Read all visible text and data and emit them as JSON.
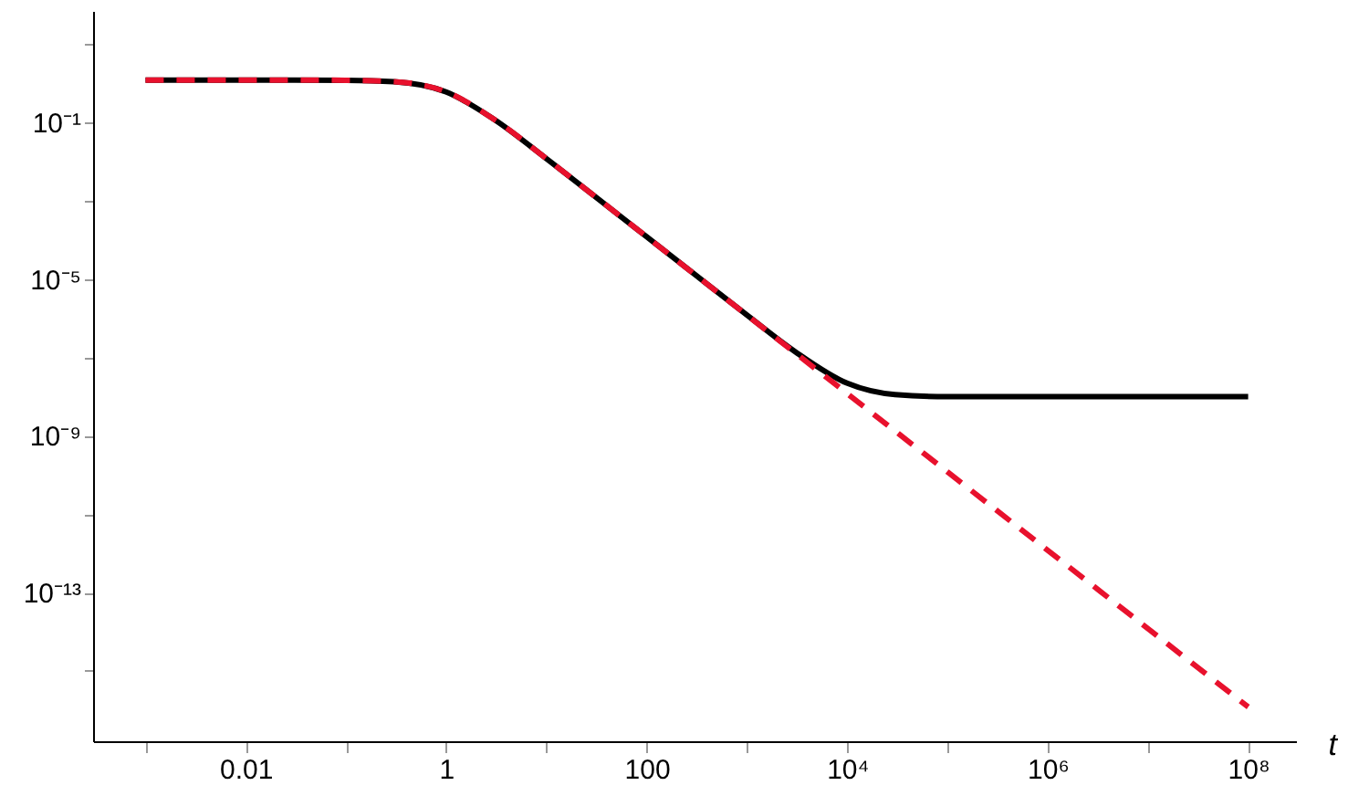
{
  "chart_data": {
    "type": "line",
    "xlabel": "t",
    "log": "xy",
    "grid": false,
    "marker": "none",
    "x": [
      0.001,
      0.003,
      0.01,
      0.03,
      0.1,
      0.3,
      1,
      3,
      10,
      30,
      100,
      300,
      1000,
      3000,
      10000,
      30000,
      100000,
      1000000,
      10000000,
      100000000
    ],
    "series": [
      {
        "color": "#000000",
        "line_style": "solid",
        "values": [
          1.2,
          1.2,
          1.2,
          1.2,
          1.19,
          1.1,
          0.6,
          0.12,
          0.0119,
          0.00133,
          0.00012,
          1.33e-05,
          1.21e-06,
          1.43e-07,
          2.2e-08,
          1.13e-08,
          1e-08,
          1e-08,
          1e-08,
          1e-08
        ]
      },
      {
        "color": "#e8112d",
        "line_style": "dashed",
        "values": [
          1.2,
          1.2,
          1.2,
          1.2,
          1.19,
          1.1,
          0.6,
          0.12,
          0.0119,
          0.00133,
          0.00012,
          1.33e-05,
          1.2e-06,
          1.33e-07,
          1.2e-08,
          1.33e-09,
          1.2e-10,
          1.2e-12,
          1.2e-14,
          1.2e-16
        ]
      }
    ],
    "xlim": [
      0.0003,
      300000000
    ],
    "ylim": [
      1.6e-17,
      70
    ],
    "xticks": [
      {
        "value": 0.001,
        "label": null
      },
      0.01,
      {
        "value": 0.1,
        "label": null
      },
      1,
      {
        "value": 10,
        "label": null
      },
      100,
      {
        "value": 1000,
        "label": null
      },
      {
        "value": 10000,
        "label": "10⁴"
      },
      {
        "value": 100000,
        "label": null
      },
      {
        "value": 1000000,
        "label": "10⁶"
      },
      {
        "value": 10000000,
        "label": null
      },
      {
        "value": 100000000,
        "label": "10⁸"
      }
    ],
    "yticks": [
      {
        "value": 1e-15,
        "label": null
      },
      {
        "value": 1e-13,
        "label": "10⁻¹³"
      },
      {
        "value": 1e-11,
        "label": null
      },
      {
        "value": 1e-09,
        "label": "10⁻⁹"
      },
      {
        "value": 1e-07,
        "label": null
      },
      {
        "value": 1e-05,
        "label": "10⁻⁵"
      },
      {
        "value": 0.001,
        "label": null
      },
      {
        "value": 0.1,
        "label": "10⁻¹"
      },
      {
        "value": 10,
        "label": null
      }
    ]
  }
}
